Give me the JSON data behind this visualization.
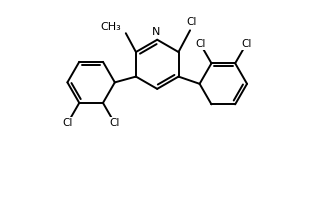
{
  "background": "#ffffff",
  "line_color": "#000000",
  "line_width": 1.4,
  "text_color": "#000000",
  "font_size": 7.5,
  "figsize": [
    3.26,
    1.98
  ],
  "dpi": 100,
  "xlim": [
    -4.5,
    5.5
  ],
  "ylim": [
    -3.8,
    3.0
  ]
}
